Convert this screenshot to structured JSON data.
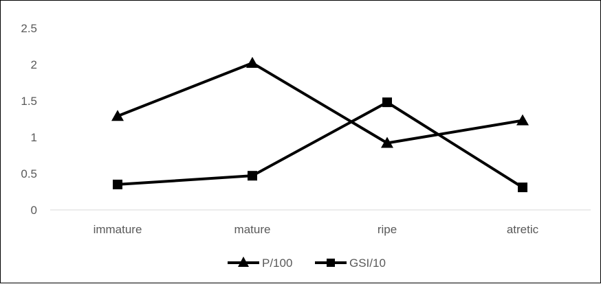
{
  "chart_data": {
    "type": "line",
    "title": "",
    "xlabel": "",
    "ylabel": "",
    "categories": [
      "immature",
      "mature",
      "ripe",
      "atretic"
    ],
    "ylim": [
      0,
      2.5
    ],
    "yticks": [
      "0",
      "0.5",
      "1",
      "1.5",
      "2",
      "2.5"
    ],
    "grid": false,
    "legend_position": "bottom",
    "series": [
      {
        "name": "P/100",
        "marker": "triangle",
        "color": "#000000",
        "values": [
          1.29,
          2.02,
          0.92,
          1.23
        ]
      },
      {
        "name": "GSI/10",
        "marker": "square",
        "color": "#000000",
        "values": [
          0.35,
          0.47,
          1.48,
          0.31
        ]
      }
    ]
  }
}
